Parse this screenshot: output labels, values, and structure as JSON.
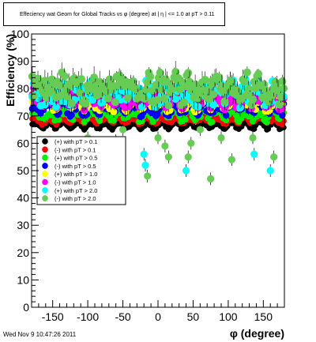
{
  "title": "Effeciency wat Geom for Global Tracks vs φ (degree) at | η | <= 1.0 at pT > 0.11",
  "footer": "Wed Nov  9 10:47:26 2011",
  "chart_data": {
    "type": "scatter",
    "xlabel": "φ (degree)",
    "ylabel": "Efficiency (%)",
    "xlim": [
      -180,
      180
    ],
    "ylim": [
      0,
      100
    ],
    "xticks": [
      -150,
      -100,
      -50,
      0,
      50,
      100,
      150
    ],
    "yticks": [
      0,
      10,
      20,
      30,
      40,
      50,
      60,
      70,
      80,
      90,
      100
    ],
    "grid": false,
    "legend_position": "middle-left",
    "series": [
      {
        "name": "(+) with pT > 0.1",
        "color": "#000000",
        "base": 66.5,
        "amp": 1.0,
        "spread": 0.6,
        "err": 0.8
      },
      {
        "name": "(-) with pT > 0.1",
        "color": "#ff0000",
        "base": 68.5,
        "amp": 1.0,
        "spread": 0.8,
        "err": 0.9
      },
      {
        "name": "(+) with pT > 0.5",
        "color": "#00ee00",
        "base": 70.5,
        "amp": 1.5,
        "spread": 1.5,
        "err": 1.2
      },
      {
        "name": "(-) with pT > 0.5",
        "color": "#0000ff",
        "base": 73,
        "amp": 1.5,
        "spread": 2.0,
        "err": 1.4
      },
      {
        "name": "(+) with pT > 1.0",
        "color": "#ffff00",
        "base": 75,
        "amp": 1.5,
        "spread": 2.5,
        "err": 1.8
      },
      {
        "name": "(-) with pT > 1.0",
        "color": "#ff00ff",
        "base": 76.5,
        "amp": 1.5,
        "spread": 3.0,
        "err": 2.0
      },
      {
        "name": "(+) with pT > 2.0",
        "color": "#00ffff",
        "base": 78,
        "amp": 1.5,
        "spread": 4.0,
        "err": 2.5
      },
      {
        "name": "(-) with pT > 2.0",
        "color": "#66cc55",
        "base": 80,
        "amp": 2.0,
        "spread": 4.5,
        "err": 3.0
      }
    ],
    "outliers": [
      {
        "series": 7,
        "x": -155,
        "y": 55
      },
      {
        "series": 7,
        "x": -120,
        "y": 48
      },
      {
        "series": 6,
        "x": -115,
        "y": 50
      },
      {
        "series": 7,
        "x": -100,
        "y": 62
      },
      {
        "series": 7,
        "x": -90,
        "y": 60
      },
      {
        "series": 6,
        "x": -60,
        "y": 61
      },
      {
        "series": 7,
        "x": -50,
        "y": 65
      },
      {
        "series": 6,
        "x": -20,
        "y": 56
      },
      {
        "series": 6,
        "x": -18,
        "y": 52
      },
      {
        "series": 7,
        "x": -15,
        "y": 48
      },
      {
        "series": 7,
        "x": 0,
        "y": 62
      },
      {
        "series": 7,
        "x": 10,
        "y": 59
      },
      {
        "series": 7,
        "x": 15,
        "y": 55
      },
      {
        "series": 6,
        "x": 40,
        "y": 50
      },
      {
        "series": 7,
        "x": 43,
        "y": 55
      },
      {
        "series": 7,
        "x": 47,
        "y": 60
      },
      {
        "series": 7,
        "x": 60,
        "y": 65
      },
      {
        "series": 7,
        "x": 75,
        "y": 47
      },
      {
        "series": 7,
        "x": 90,
        "y": 62
      },
      {
        "series": 7,
        "x": 105,
        "y": 54
      },
      {
        "series": 7,
        "x": 135,
        "y": 62
      },
      {
        "series": 6,
        "x": 137,
        "y": 56
      },
      {
        "series": 6,
        "x": 160,
        "y": 50
      },
      {
        "series": 7,
        "x": 165,
        "y": 55
      }
    ]
  }
}
